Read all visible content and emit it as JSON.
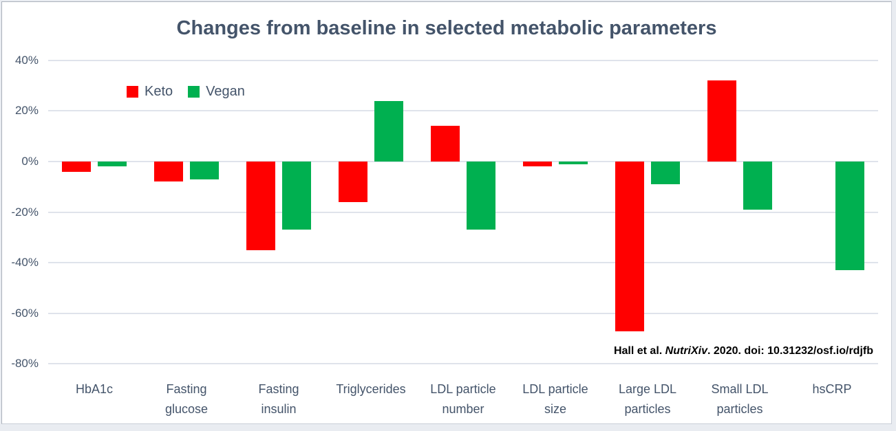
{
  "chart_data": {
    "type": "bar",
    "title": "Changes from baseline in selected metabolic parameters",
    "title_color": "#44546A",
    "axis_label_color": "#44546A",
    "gridline_color": "#DFE3EB",
    "background_color": "#FFFFFF",
    "categories": [
      "HbA1c",
      "Fasting\nglucose",
      "Fasting\ninsulin",
      "Triglycerides",
      "LDL particle\nnumber",
      "LDL particle\nsize",
      "Large LDL\nparticles",
      "Small LDL\nparticles",
      "hsCRP"
    ],
    "series": [
      {
        "name": "Keto",
        "color": "#FF0000",
        "values": [
          -4,
          -8,
          -35,
          -16,
          14,
          -2,
          -67,
          32,
          0
        ]
      },
      {
        "name": "Vegan",
        "color": "#00B050",
        "values": [
          -2,
          -7,
          -27,
          24,
          -27,
          -1,
          -9,
          -19,
          -43
        ]
      }
    ],
    "y_ticks": [
      {
        "label": "40%",
        "value": 40
      },
      {
        "label": "20%",
        "value": 20
      },
      {
        "label": "0%",
        "value": 0
      },
      {
        "label": "-20%",
        "value": -20
      },
      {
        "label": "-40%",
        "value": -40
      },
      {
        "label": "-60%",
        "value": -60
      },
      {
        "label": "-80%",
        "value": -80
      }
    ],
    "ylim": [
      -80,
      40
    ],
    "grid": true,
    "legend_position": "top-left-inside",
    "annotation": {
      "parts": [
        {
          "text": "Hall et al. ",
          "italic": false
        },
        {
          "text": "NutriXiv",
          "italic": true
        },
        {
          "text": ". 2020. doi: 10.31232/osf.io/rdjfb",
          "italic": false
        }
      ]
    }
  }
}
